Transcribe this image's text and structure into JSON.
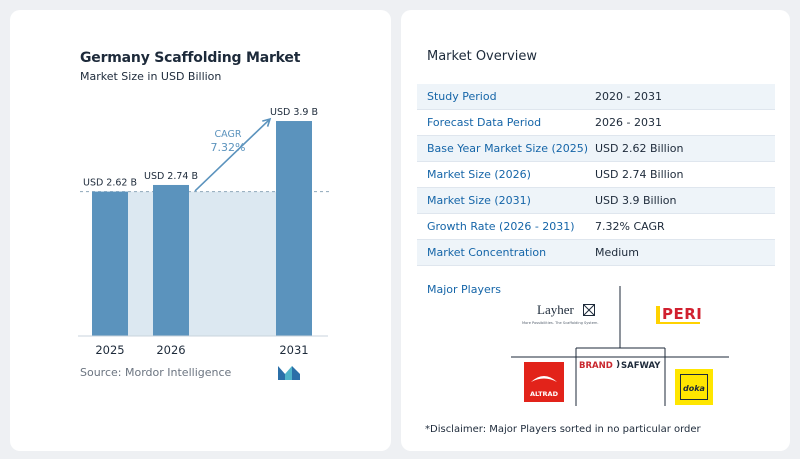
{
  "chart_card": {
    "title": "Germany Scaffolding Market",
    "subtitle": "Market Size in USD Billion",
    "source_label": "Source:",
    "source_value": "Mordor Intelligence",
    "logo_icon": "mordor-intelligence-logo-icon"
  },
  "chart_data": {
    "type": "bar",
    "title": "Germany Scaffolding Market",
    "subtitle": "Market Size in USD Billion",
    "categories": [
      "2025",
      "2026",
      "2031"
    ],
    "values": [
      2.62,
      2.74,
      3.9
    ],
    "data_labels": [
      "USD 2.62 B",
      "USD 2.74 B",
      "USD 3.9 B"
    ],
    "cagr_label": "CAGR",
    "cagr_value": "7.32%",
    "ylim": [
      0,
      4.1
    ],
    "bar_color": "#5b93bd",
    "area_color": "#dce8f1",
    "arrow_color": "#5b93bd",
    "grid": false
  },
  "overview": {
    "title": "Market Overview",
    "rows": [
      {
        "label": "Study Period",
        "value": "2020 - 2031"
      },
      {
        "label": "Forecast Data Period",
        "value": "2026 - 2031"
      },
      {
        "label": "Base Year Market Size (2025)",
        "value": "USD 2.62 Billion"
      },
      {
        "label": "Market Size (2026)",
        "value": "USD 2.74 Billion"
      },
      {
        "label": "Market Size (2031)",
        "value": "USD 3.9 Billion"
      },
      {
        "label": "Growth Rate (2026 - 2031)",
        "value": "7.32% CAGR"
      },
      {
        "label": "Market Concentration",
        "value": "Medium"
      }
    ],
    "major_players_label": "Major Players",
    "players": {
      "layher": {
        "name": "Layher",
        "tagline": "More Possibilities. The Scaffolding System."
      },
      "peri": {
        "name": "PERI"
      },
      "brand_safway": {
        "name_left": "BRAND",
        "name_right": "SAFWAY"
      },
      "altrad": {
        "name": "ALTRAD"
      },
      "doka": {
        "name": "doka"
      }
    },
    "disclaimer": "*Disclaimer: Major Players sorted in no particular order"
  },
  "colors": {
    "accent_text": "#1565a8",
    "bar": "#5b93bd",
    "peri_red": "#d1202f",
    "peri_yellow": "#ffd200",
    "altrad_red": "#e2231a",
    "doka_yellow": "#ffe600"
  }
}
